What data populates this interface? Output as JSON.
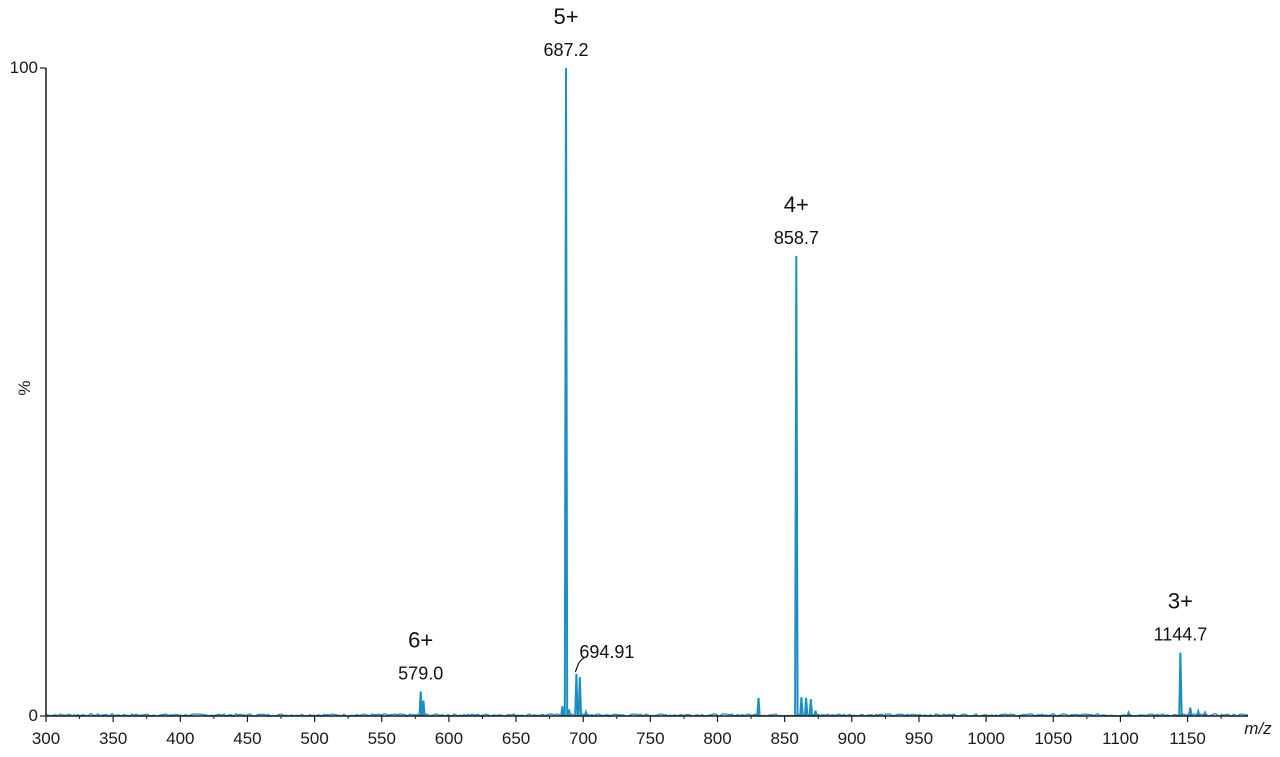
{
  "chart_data": {
    "type": "line",
    "title": "",
    "xlabel": "m/z",
    "ylabel": "%",
    "xlim": [
      300,
      1195
    ],
    "ylim": [
      0,
      100
    ],
    "x_ticks": [
      300,
      350,
      400,
      450,
      500,
      550,
      600,
      650,
      700,
      750,
      800,
      850,
      900,
      950,
      1000,
      1050,
      1100,
      1150
    ],
    "y_ticks": [
      0,
      100
    ],
    "grid": false,
    "legend": "none",
    "color": "#1b8fc4",
    "peaks": [
      {
        "mz": 579.0,
        "intensity": 3.8
      },
      {
        "mz": 581.0,
        "intensity": 2.4
      },
      {
        "mz": 684.5,
        "intensity": 1.5
      },
      {
        "mz": 687.2,
        "intensity": 100
      },
      {
        "mz": 689.5,
        "intensity": 1.0
      },
      {
        "mz": 694.91,
        "intensity": 6.5
      },
      {
        "mz": 697.5,
        "intensity": 6.0
      },
      {
        "mz": 702.0,
        "intensity": 0.6
      },
      {
        "mz": 830.5,
        "intensity": 2.8
      },
      {
        "mz": 858.7,
        "intensity": 71
      },
      {
        "mz": 862.5,
        "intensity": 2.9
      },
      {
        "mz": 866.0,
        "intensity": 2.8
      },
      {
        "mz": 869.5,
        "intensity": 2.6
      },
      {
        "mz": 873.0,
        "intensity": 0.8
      },
      {
        "mz": 1106.0,
        "intensity": 0.5
      },
      {
        "mz": 1144.7,
        "intensity": 9.8
      },
      {
        "mz": 1152.0,
        "intensity": 1.3
      },
      {
        "mz": 1158.0,
        "intensity": 0.7
      },
      {
        "mz": 1163.0,
        "intensity": 0.5
      }
    ],
    "annotations": [
      {
        "charge": "6+",
        "mz_label": "579.0",
        "mz": 579.0,
        "intensity": 3.8
      },
      {
        "charge": "5+",
        "mz_label": "687.2",
        "mz": 687.2,
        "intensity": 100
      },
      {
        "charge": "",
        "mz_label": "694.91",
        "mz": 694.91,
        "intensity": 6.5
      },
      {
        "charge": "4+",
        "mz_label": "858.7",
        "mz": 858.7,
        "intensity": 71
      },
      {
        "charge": "3+",
        "mz_label": "1144.7",
        "mz": 1144.7,
        "intensity": 9.8
      }
    ]
  }
}
